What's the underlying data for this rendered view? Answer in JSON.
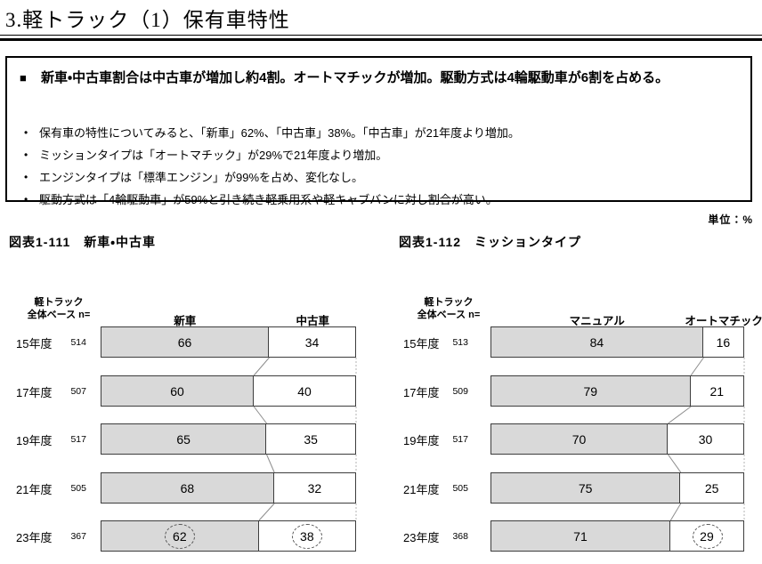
{
  "page_title": "3.軽トラック（1）保有車特性",
  "unit_label": "単位：%",
  "summary": {
    "headline": "新車・中古車割合は中古車が増加し約4割。オートマチックが増加。駆動方式は4輪駆動車が6割を占める。",
    "bullets": [
      "保有車の特性についてみると、「新車」62%、「中古車」38%。「中古車」が21年度より増加。",
      "ミッションタイプは「オートマチック」が29%で21年度より増加。",
      "エンジンタイプは「標準エンジン」が99%を占め、変化なし。",
      "駆動方式は「4輪駆動車」が59%と引き続き軽乗用系や軽キャブバンに対し割合が高い。"
    ]
  },
  "chart_data": [
    {
      "type": "bar",
      "orientation": "horizontal-stacked",
      "title": "図表1-111　新車・中古車",
      "base_label": [
        "軽トラック",
        "全体ベース n="
      ],
      "categories": [
        "15年度",
        "17年度",
        "19年度",
        "21年度",
        "23年度"
      ],
      "n_values": [
        514,
        507,
        517,
        505,
        367
      ],
      "series": [
        {
          "name": "新車",
          "values": [
            66,
            60,
            65,
            68,
            62
          ]
        },
        {
          "name": "中古車",
          "values": [
            34,
            40,
            35,
            32,
            38
          ]
        }
      ],
      "xlim": [
        0,
        100
      ],
      "circled": [
        {
          "row": 4,
          "segment": 0
        },
        {
          "row": 4,
          "segment": 1
        }
      ],
      "colors": {
        "segment0_fill": "#d9d9d9",
        "segment1_fill": "#ffffff",
        "bar_border": "#3d3d3d"
      }
    },
    {
      "type": "bar",
      "orientation": "horizontal-stacked",
      "title": "図表1-112　ミッションタイプ",
      "base_label": [
        "軽トラック",
        "全体ベース n="
      ],
      "categories": [
        "15年度",
        "17年度",
        "19年度",
        "21年度",
        "23年度"
      ],
      "n_values": [
        513,
        509,
        517,
        505,
        368
      ],
      "series": [
        {
          "name": "マニュアル",
          "values": [
            84,
            79,
            70,
            75,
            71
          ]
        },
        {
          "name": "オートマチック",
          "values": [
            16,
            21,
            30,
            25,
            29
          ]
        }
      ],
      "xlim": [
        0,
        100
      ],
      "circled": [
        {
          "row": 4,
          "segment": 1
        }
      ],
      "colors": {
        "segment0_fill": "#d9d9d9",
        "segment1_fill": "#ffffff",
        "bar_border": "#3d3d3d"
      }
    }
  ]
}
